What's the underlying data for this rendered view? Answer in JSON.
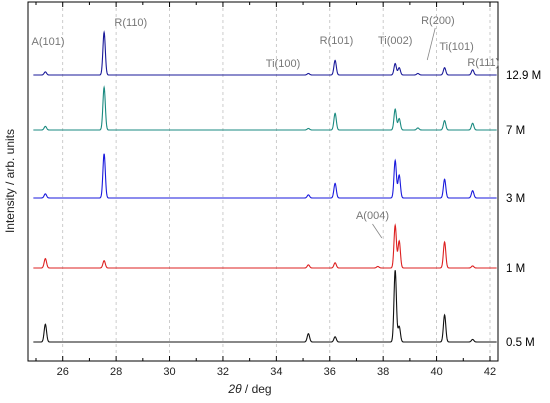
{
  "chart_data": {
    "type": "line",
    "title": "",
    "xlabel": "2θ / deg",
    "xlabel_var": "2θ",
    "xlabel_unit": " / deg",
    "ylabel": "Intensity / arb. units",
    "xlim": [
      24.7,
      42.3
    ],
    "xticks": [
      26,
      28,
      30,
      32,
      34,
      36,
      38,
      40,
      42
    ],
    "grid": "vertical dashed",
    "series": [
      {
        "name": "12.9 M",
        "color": "#1a1a99",
        "offset": 4,
        "peaks": [
          [
            25.35,
            0.06
          ],
          [
            27.55,
            0.82
          ],
          [
            35.2,
            0.03
          ],
          [
            36.2,
            0.28
          ],
          [
            38.45,
            0.22
          ],
          [
            38.6,
            0.14
          ],
          [
            39.3,
            0.03
          ],
          [
            40.3,
            0.14
          ],
          [
            41.35,
            0.1
          ]
        ]
      },
      {
        "name": "7 M",
        "color": "#1a8a80",
        "offset": 3,
        "peaks": [
          [
            25.35,
            0.07
          ],
          [
            27.55,
            0.82
          ],
          [
            35.2,
            0.03
          ],
          [
            36.2,
            0.32
          ],
          [
            38.45,
            0.4
          ],
          [
            38.6,
            0.22
          ],
          [
            39.3,
            0.04
          ],
          [
            40.3,
            0.18
          ],
          [
            41.35,
            0.13
          ]
        ]
      },
      {
        "name": "3 M",
        "color": "#1a1add",
        "offset": 2,
        "peaks": [
          [
            25.35,
            0.08
          ],
          [
            27.55,
            0.85
          ],
          [
            35.2,
            0.06
          ],
          [
            36.2,
            0.28
          ],
          [
            38.45,
            0.72
          ],
          [
            38.6,
            0.44
          ],
          [
            40.3,
            0.36
          ],
          [
            41.35,
            0.14
          ]
        ]
      },
      {
        "name": "1 M",
        "color": "#dd2020",
        "offset": 1,
        "peaks": [
          [
            25.35,
            0.18
          ],
          [
            27.55,
            0.14
          ],
          [
            35.2,
            0.06
          ],
          [
            36.2,
            0.1
          ],
          [
            37.8,
            0.03
          ],
          [
            38.45,
            0.82
          ],
          [
            38.6,
            0.52
          ],
          [
            40.3,
            0.5
          ],
          [
            41.35,
            0.04
          ]
        ]
      },
      {
        "name": "0.5 M",
        "color": "#111111",
        "offset": 0,
        "peaks": [
          [
            25.35,
            0.34
          ],
          [
            35.2,
            0.16
          ],
          [
            36.2,
            0.1
          ],
          [
            38.45,
            1.38
          ],
          [
            38.6,
            0.3
          ],
          [
            40.3,
            0.52
          ],
          [
            41.35,
            0.05
          ]
        ]
      }
    ],
    "annotations": [
      {
        "text": "A(101)",
        "x": 25.45
      },
      {
        "text": "R(110)",
        "x": 28.55
      },
      {
        "text": "Ti(100)",
        "x": 34.25
      },
      {
        "text": "R(101)",
        "x": 36.25
      },
      {
        "text": "Ti(002)",
        "x": 38.45
      },
      {
        "text": "R(200)",
        "x": 40.05
      },
      {
        "text": "Ti(101)",
        "x": 40.75
      },
      {
        "text": "R(111)",
        "x": 41.75
      },
      {
        "text": "A(004)",
        "x": 37.6
      }
    ]
  }
}
